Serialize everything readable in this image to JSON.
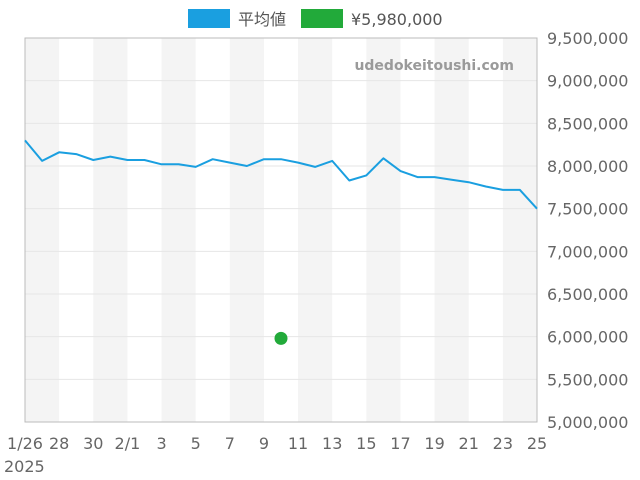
{
  "chart_data": {
    "type": "line",
    "watermark": "udedokeitoushi.com",
    "x_tick_labels": [
      "1/26",
      "28",
      "30",
      "2/1",
      "3",
      "5",
      "7",
      "9",
      "11",
      "13",
      "15",
      "17",
      "19",
      "21",
      "23",
      "25"
    ],
    "x_year_label": "2025",
    "x_dates": [
      "2025-01-26",
      "2025-01-27",
      "2025-01-28",
      "2025-01-29",
      "2025-01-30",
      "2025-01-31",
      "2025-02-01",
      "2025-02-02",
      "2025-02-03",
      "2025-02-04",
      "2025-02-05",
      "2025-02-06",
      "2025-02-07",
      "2025-02-08",
      "2025-02-09",
      "2025-02-10",
      "2025-02-11",
      "2025-02-12",
      "2025-02-13",
      "2025-02-14",
      "2025-02-15",
      "2025-02-16",
      "2025-02-17",
      "2025-02-18",
      "2025-02-19",
      "2025-02-20",
      "2025-02-21",
      "2025-02-22",
      "2025-02-23",
      "2025-02-24",
      "2025-02-25"
    ],
    "ylim": [
      5000000,
      9500000
    ],
    "y_tick_labels": [
      "5,000,000",
      "5,500,000",
      "6,000,000",
      "6,500,000",
      "7,000,000",
      "7,500,000",
      "8,000,000",
      "8,500,000",
      "9,000,000",
      "9,500,000"
    ],
    "y_ticks": [
      5000000,
      5500000,
      6000000,
      6500000,
      7000000,
      7500000,
      8000000,
      8500000,
      9000000,
      9500000
    ],
    "grid": true,
    "legend_position": "top-center",
    "series": [
      {
        "name": "平均値",
        "type": "line",
        "color": "#1a9fe0",
        "values": [
          8300000,
          8060000,
          8160000,
          8140000,
          8070000,
          8110000,
          8070000,
          8070000,
          8020000,
          8020000,
          7990000,
          8080000,
          8040000,
          8000000,
          8080000,
          8080000,
          8040000,
          7990000,
          8060000,
          7830000,
          7890000,
          8090000,
          7940000,
          7870000,
          7870000,
          7840000,
          7810000,
          7760000,
          7720000,
          7720000,
          7500000
        ]
      },
      {
        "name": "¥5,980,000",
        "type": "scatter",
        "color": "#22aa3a",
        "points": [
          {
            "x": "2025-02-10",
            "y": 5980000
          }
        ]
      }
    ]
  }
}
